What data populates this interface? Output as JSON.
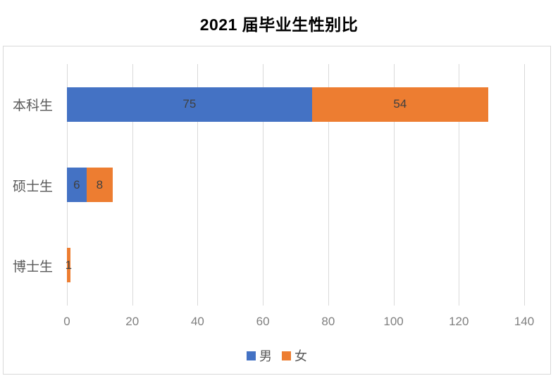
{
  "title": "2021 届毕业生性别比",
  "chart_data": {
    "type": "bar",
    "orientation": "horizontal",
    "stacked": true,
    "title": "2021 届毕业生性别比",
    "categories": [
      "本科生",
      "硕士生",
      "博士生"
    ],
    "series": [
      {
        "name": "男",
        "color": "#4472C4",
        "values": [
          75,
          6,
          null
        ]
      },
      {
        "name": "女",
        "color": "#ED7D31",
        "values": [
          54,
          8,
          1
        ]
      }
    ],
    "xlabel": "",
    "ylabel": "",
    "xlim": [
      0,
      140
    ],
    "x_ticks": [
      0,
      20,
      40,
      60,
      80,
      100,
      120,
      140
    ],
    "grid": true,
    "data_labels": true,
    "legend_position": "bottom"
  },
  "colors": {
    "male": "#4472C4",
    "female": "#ED7D31",
    "gridline": "#D9D9D9",
    "chart_border": "#D9D9D9",
    "tick_label": "#7F7F7F",
    "category_label": "#595959",
    "data_label": "#404040",
    "title": "#000000",
    "background": "#FFFFFF"
  }
}
